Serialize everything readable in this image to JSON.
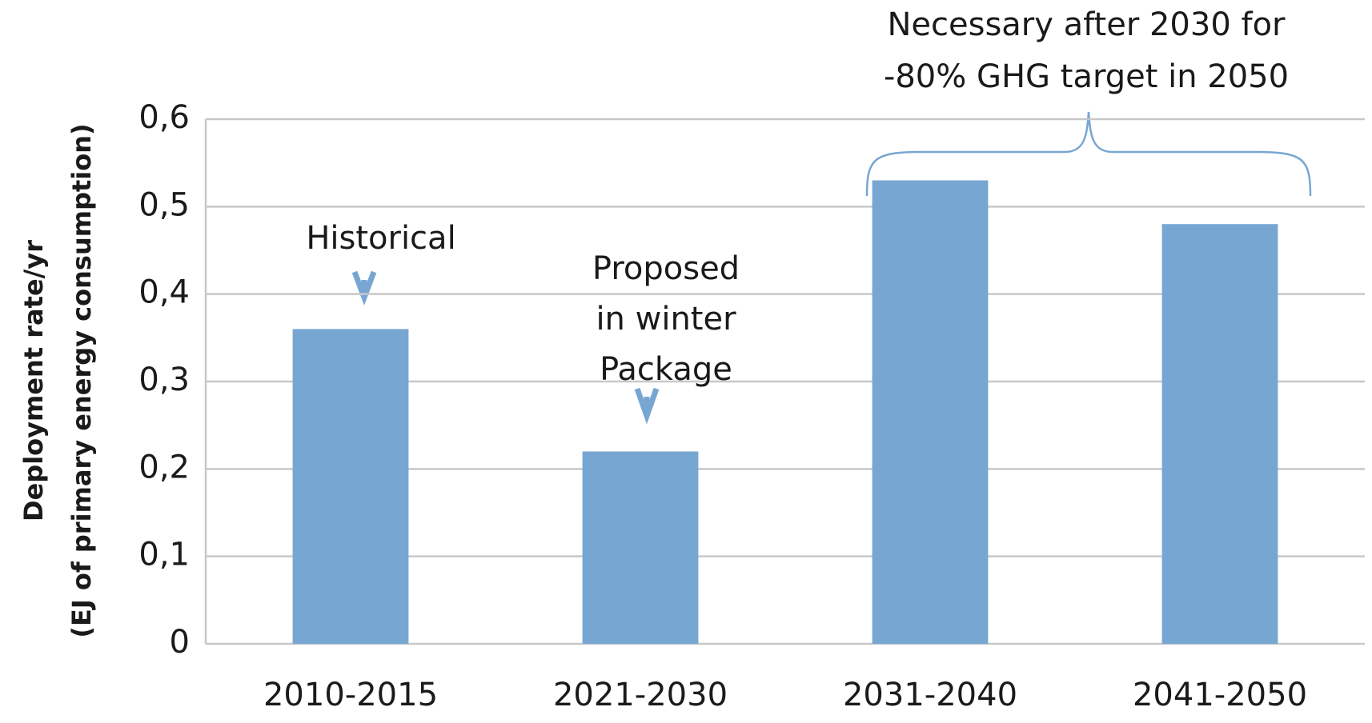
{
  "chart_data": {
    "type": "bar",
    "ylabel": [
      "Deployment rate/yr",
      "(EJ of primary energy consumption)"
    ],
    "categories": [
      "2010-2015",
      "2021-2030",
      "2031-2040",
      "2041-2050"
    ],
    "values": [
      0.36,
      0.22,
      0.53,
      0.48
    ],
    "color": "#78a6d2",
    "ylim": [
      0,
      0.6
    ],
    "yticks": [
      0,
      {
        "value": 0.1,
        "label": "0,1"
      },
      {
        "value": 0.2,
        "label": "0,2"
      },
      {
        "value": 0.3,
        "label": "0,3"
      },
      {
        "value": 0.4,
        "label": "0,4"
      },
      {
        "value": 0.5,
        "label": "0,5"
      },
      {
        "value": 0.6,
        "label": "0,6"
      }
    ],
    "grid": true,
    "annotations": [
      {
        "lines": [
          "Historical"
        ]
      },
      {
        "lines": [
          "Proposed",
          "in winter",
          "Package"
        ]
      },
      {
        "lines": [
          "Necessary after 2030 for",
          "-80% GHG target in 2050"
        ]
      }
    ]
  }
}
